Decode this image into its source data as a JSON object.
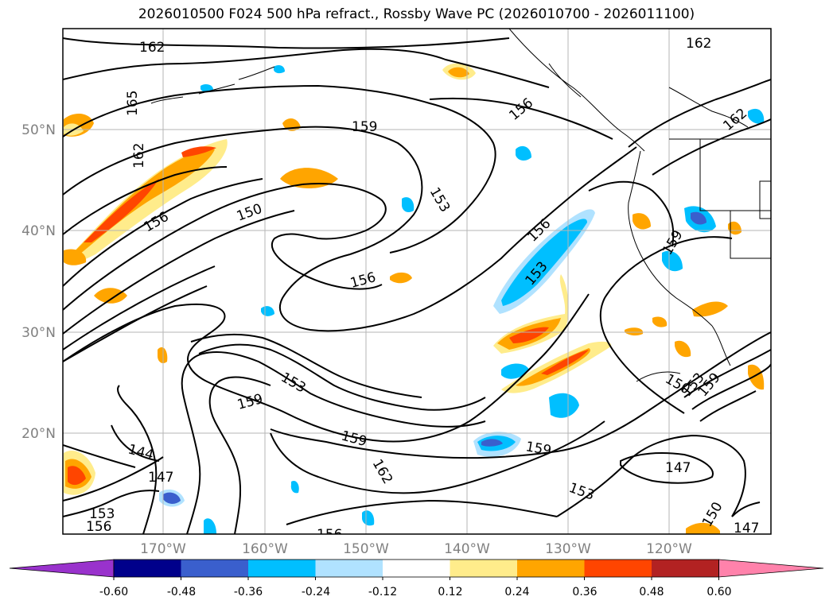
{
  "title": "2026010500 F024 500 hPa refract., Rossby Wave PC (2026010700 - 2026011100)",
  "map": {
    "lat_labels": [
      "50°N",
      "40°N",
      "30°N",
      "20°N"
    ],
    "lon_labels": [
      "170°W",
      "160°W",
      "150°W",
      "140°W",
      "130°W",
      "120°W"
    ],
    "contour_labels": [
      "162",
      "162",
      "165",
      "162",
      "162",
      "159",
      "156",
      "156",
      "150",
      "153",
      "156",
      "153",
      "156",
      "159",
      "153",
      "159",
      "159",
      "162",
      "159",
      "144",
      "147",
      "153",
      "156",
      "156",
      "153",
      "150",
      "147",
      "147",
      "150",
      "153",
      "159"
    ]
  },
  "colorbar": {
    "ticks": [
      "-0.60",
      "-0.48",
      "-0.36",
      "-0.24",
      "-0.12",
      "0.12",
      "0.24",
      "0.36",
      "0.48",
      "0.60"
    ],
    "colors": [
      "#9932cc",
      "#00008b",
      "#3a5fcd",
      "#00bfff",
      "#b0e2ff",
      "#ffffff",
      "#ffec8b",
      "#ffa500",
      "#ff4500",
      "#b22222",
      "#ff82ab"
    ]
  }
}
